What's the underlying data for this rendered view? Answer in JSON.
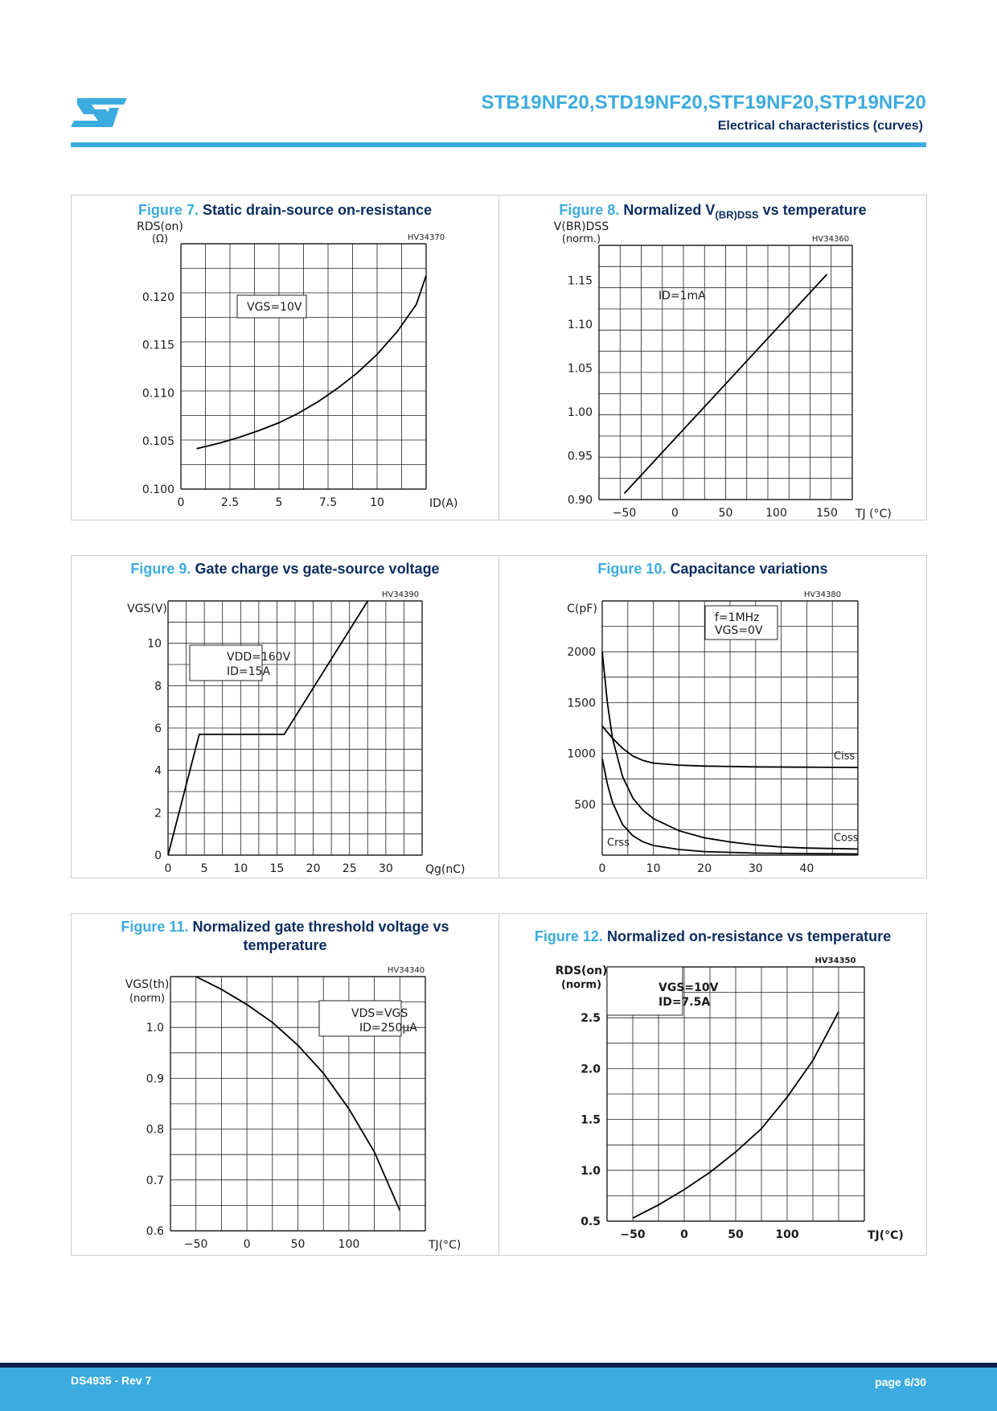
{
  "header": {
    "title": "STB19NF20,STD19NF20,STF19NF20,STP19NF20",
    "subtitle": "Electrical characteristics (curves)",
    "logo_text": "ST"
  },
  "footer": {
    "doc_id": "DS4935 - Rev 7",
    "page": "page 6/30"
  },
  "colors": {
    "accent": "#3cabdf",
    "navy": "#0b2c5f",
    "footer_dark": "#0b1f4c"
  },
  "figures": [
    {
      "num": "Figure 7.",
      "title": "Static drain-source on-resistance"
    },
    {
      "num": "Figure 8.",
      "title_pre": "Normalized V",
      "title_sub": "(BR)DSS",
      "title_post": " vs temperature"
    },
    {
      "num": "Figure 9.",
      "title": "Gate charge vs gate-source voltage"
    },
    {
      "num": "Figure 10.",
      "title": "Capacitance variations"
    },
    {
      "num": "Figure 11.",
      "title": "Normalized gate threshold voltage vs temperature"
    },
    {
      "num": "Figure 12.",
      "title": "Normalized on-resistance vs temperature"
    }
  ],
  "chart_data": [
    {
      "type": "line",
      "code": "HV34370",
      "ylabel": "RDS(on) (Ω)",
      "xlabel": "ID(A)",
      "xticks": [
        "0",
        "2.5",
        "5",
        "7.5",
        "10"
      ],
      "yticks": [
        "0.100",
        "0.105",
        "0.110",
        "0.115",
        "0.120"
      ],
      "xlim": [
        0,
        12.5
      ],
      "ylim": [
        0.1,
        0.1255
      ],
      "annotations": [
        "VGS=10V"
      ],
      "series": [
        {
          "x": [
            0.8,
            2,
            3,
            4,
            5,
            6,
            7,
            8,
            9,
            10,
            11,
            12,
            12.5
          ],
          "y": [
            0.1042,
            0.1048,
            0.1054,
            0.1061,
            0.1069,
            0.1079,
            0.1091,
            0.1105,
            0.1121,
            0.114,
            0.1163,
            0.1192,
            0.1222
          ]
        }
      ]
    },
    {
      "type": "line",
      "code": "HV34360",
      "ylabel": "V(BR)DSS (norm.)",
      "xlabel": "TJ (°C)",
      "xticks": [
        "-50",
        "0",
        "50",
        "100",
        "150"
      ],
      "yticks": [
        "0.90",
        "0.95",
        "1.00",
        "1.05",
        "1.10",
        "1.15"
      ],
      "xlim": [
        -75,
        175
      ],
      "ylim": [
        0.9,
        1.19
      ],
      "annotations": [
        "ID=1mA"
      ],
      "series": [
        {
          "x": [
            -50,
            150
          ],
          "y": [
            0.907,
            1.157
          ]
        }
      ]
    },
    {
      "type": "line",
      "code": "HV34390",
      "ylabel": "VGS(V)",
      "xlabel": "Qg(nC)",
      "xticks": [
        "0",
        "5",
        "10",
        "15",
        "20",
        "25",
        "30"
      ],
      "yticks": [
        "0",
        "2",
        "4",
        "6",
        "8",
        "10"
      ],
      "xlim": [
        0,
        35
      ],
      "ylim": [
        0,
        12
      ],
      "annotations": [
        "VDD=160V",
        "ID=15A"
      ],
      "series": [
        {
          "x": [
            0,
            4.3,
            16,
            27.5
          ],
          "y": [
            0,
            5.7,
            5.7,
            12
          ]
        }
      ]
    },
    {
      "type": "line",
      "code": "HV34380",
      "ylabel": "C(pF)",
      "xlabel": "",
      "xticks": [
        "0",
        "10",
        "20",
        "30",
        "40"
      ],
      "yticks": [
        "500",
        "1000",
        "1500",
        "2000"
      ],
      "xlim": [
        0,
        50
      ],
      "ylim": [
        0,
        2500
      ],
      "annotations": [
        "f=1MHz",
        "VGS=0V"
      ],
      "series": [
        {
          "name": "Ciss",
          "x": [
            0,
            2,
            4,
            6,
            8,
            10,
            15,
            20,
            30,
            40,
            50
          ],
          "y": [
            1270,
            1150,
            1050,
            975,
            930,
            905,
            885,
            876,
            868,
            865,
            862
          ]
        },
        {
          "name": "Coss",
          "x": [
            0,
            1,
            2,
            4,
            6,
            8,
            10,
            15,
            20,
            25,
            30,
            35,
            40,
            50
          ],
          "y": [
            2000,
            1500,
            1150,
            770,
            560,
            440,
            360,
            240,
            170,
            130,
            100,
            80,
            70,
            60
          ]
        },
        {
          "name": "Crss",
          "x": [
            0,
            1,
            2,
            4,
            6,
            8,
            10,
            15,
            20,
            30,
            40,
            50
          ],
          "y": [
            950,
            700,
            520,
            300,
            190,
            130,
            95,
            55,
            35,
            20,
            15,
            12
          ]
        }
      ]
    },
    {
      "type": "line",
      "code": "HV34340",
      "ylabel": "VGS(th) (norm)",
      "xlabel": "TJ(°C)",
      "xticks": [
        "-50",
        "0",
        "50",
        "100"
      ],
      "yticks": [
        "0.6",
        "0.7",
        "0.8",
        "0.9",
        "1.0"
      ],
      "xlim": [
        -75,
        175
      ],
      "ylim": [
        0.6,
        1.1
      ],
      "annotations": [
        "VDS=VGS",
        "ID=250μA"
      ],
      "series": [
        {
          "x": [
            -50,
            -25,
            0,
            25,
            50,
            75,
            100,
            125,
            150
          ],
          "y": [
            1.1,
            1.075,
            1.045,
            1.01,
            0.965,
            0.91,
            0.84,
            0.755,
            0.64
          ]
        }
      ]
    },
    {
      "type": "line",
      "code": "HV34350",
      "ylabel": "RDS(on) (norm)",
      "xlabel": "TJ(°C)",
      "xticks": [
        "-50",
        "0",
        "50",
        "100"
      ],
      "yticks": [
        "0.5",
        "1.0",
        "1.5",
        "2.0",
        "2.5"
      ],
      "xlim": [
        -75,
        175
      ],
      "ylim": [
        0.5,
        3.0
      ],
      "annotations": [
        "VGS=10V",
        "ID=7.5A"
      ],
      "series": [
        {
          "x": [
            -50,
            -25,
            0,
            25,
            50,
            75,
            100,
            125,
            150
          ],
          "y": [
            0.53,
            0.66,
            0.81,
            0.98,
            1.18,
            1.41,
            1.72,
            2.08,
            2.56
          ]
        }
      ]
    }
  ]
}
